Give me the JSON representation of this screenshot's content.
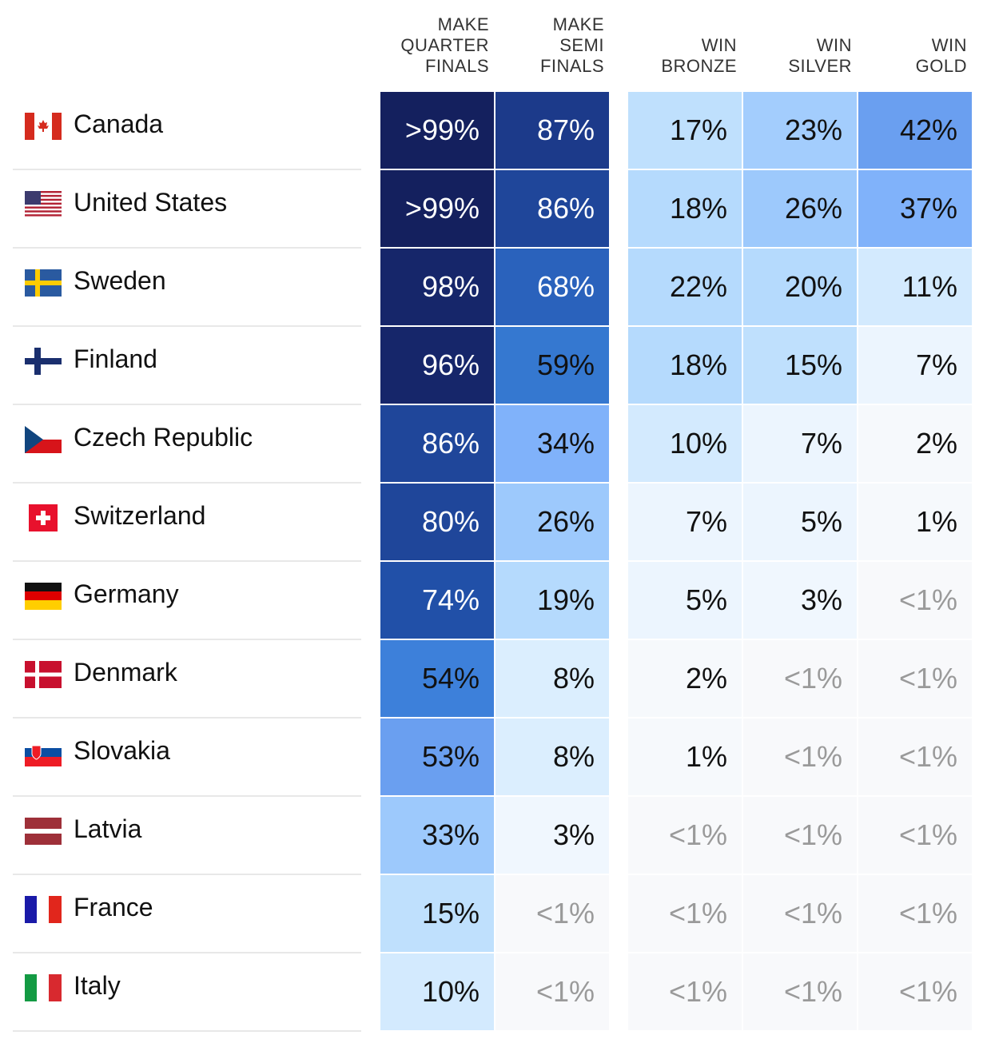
{
  "chart_data": {
    "type": "heatmap",
    "title": "",
    "columns": [
      {
        "key": "qf",
        "label": [
          "MAKE",
          "QUARTER",
          "FINALS"
        ]
      },
      {
        "key": "sf",
        "label": [
          "MAKE",
          "SEMI",
          "FINALS"
        ]
      },
      {
        "key": "bronze",
        "label": [
          "WIN",
          "BRONZE"
        ]
      },
      {
        "key": "silver",
        "label": [
          "WIN",
          "SILVER"
        ]
      },
      {
        "key": "gold",
        "label": [
          "WIN",
          "GOLD"
        ]
      }
    ],
    "rows": [
      {
        "country": "Canada",
        "flag": "canada-flag",
        "values": [
          ">99%",
          "87%",
          "17%",
          "23%",
          "42%"
        ]
      },
      {
        "country": "United States",
        "flag": "usa-flag",
        "values": [
          ">99%",
          "86%",
          "18%",
          "26%",
          "37%"
        ]
      },
      {
        "country": "Sweden",
        "flag": "sweden-flag",
        "values": [
          "98%",
          "68%",
          "22%",
          "20%",
          "11%"
        ]
      },
      {
        "country": "Finland",
        "flag": "finland-flag",
        "values": [
          "96%",
          "59%",
          "18%",
          "15%",
          "7%"
        ]
      },
      {
        "country": "Czech Republic",
        "flag": "czech-flag",
        "values": [
          "86%",
          "34%",
          "10%",
          "7%",
          "2%"
        ]
      },
      {
        "country": "Switzerland",
        "flag": "switzerland-flag",
        "values": [
          "80%",
          "26%",
          "7%",
          "5%",
          "1%"
        ]
      },
      {
        "country": "Germany",
        "flag": "germany-flag",
        "values": [
          "74%",
          "19%",
          "5%",
          "3%",
          "<1%"
        ]
      },
      {
        "country": "Denmark",
        "flag": "denmark-flag",
        "values": [
          "54%",
          "8%",
          "2%",
          "<1%",
          "<1%"
        ]
      },
      {
        "country": "Slovakia",
        "flag": "slovakia-flag",
        "values": [
          "53%",
          "8%",
          "1%",
          "<1%",
          "<1%"
        ]
      },
      {
        "country": "Latvia",
        "flag": "latvia-flag",
        "values": [
          "33%",
          "3%",
          "<1%",
          "<1%",
          "<1%"
        ]
      },
      {
        "country": "France",
        "flag": "france-flag",
        "values": [
          "15%",
          "<1%",
          "<1%",
          "<1%",
          "<1%"
        ]
      },
      {
        "country": "Italy",
        "flag": "italy-flag",
        "values": [
          "10%",
          "<1%",
          "<1%",
          "<1%",
          "<1%"
        ]
      }
    ]
  }
}
